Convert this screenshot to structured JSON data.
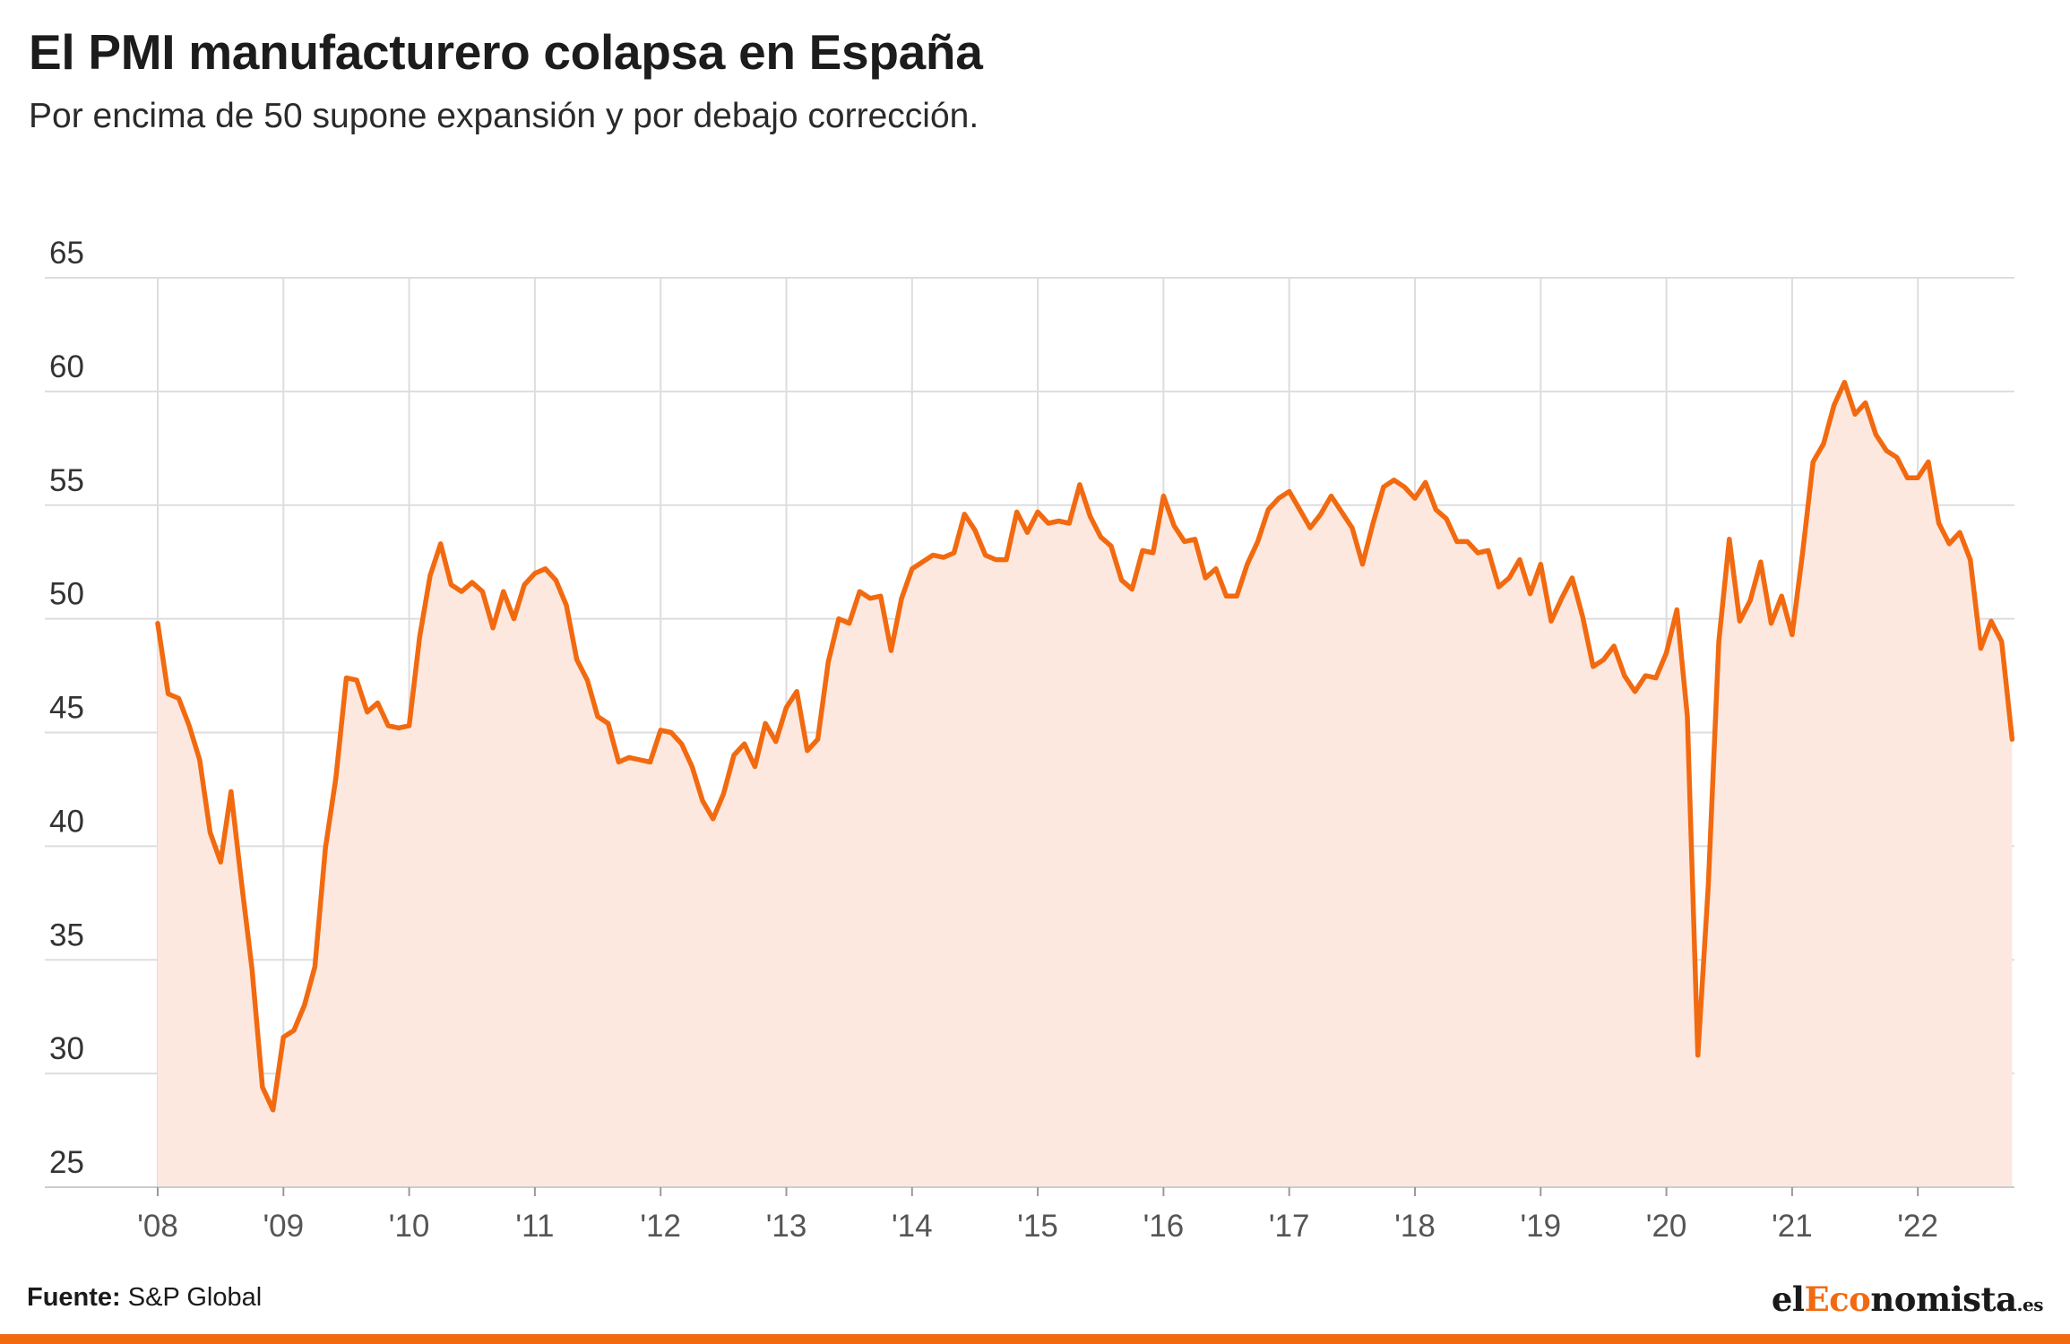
{
  "header": {
    "title": "El PMI manufacturero colapsa en España",
    "subtitle": "Por encima de 50 supone expansión y por debajo corrección."
  },
  "footer": {
    "source_label": "Fuente:",
    "source_value": "S&P Global",
    "logo_prefix": "el",
    "logo_accent": "Eco",
    "logo_rest": "nomista",
    "logo_tld": ".es"
  },
  "colors": {
    "line": "#f26a10",
    "area": "#fde8e0",
    "grid": "#dddddd",
    "accent": "#f26a10"
  },
  "chart_data": {
    "type": "area",
    "ylim": [
      25,
      65
    ],
    "yticks": [
      25,
      30,
      35,
      40,
      45,
      50,
      55,
      60,
      65
    ],
    "xticks": [
      "'08",
      "'09",
      "'10",
      "'11",
      "'12",
      "'13",
      "'14",
      "'15",
      "'16",
      "'17",
      "'18",
      "'19",
      "'20",
      "'21",
      "'22"
    ],
    "x_start": "2008-01",
    "x_end": "2022-10",
    "grid": true,
    "series": [
      {
        "values": [
          49.8,
          46.7,
          46.5,
          45.3,
          43.8,
          40.6,
          39.3,
          42.4,
          38.4,
          34.6,
          29.4,
          28.4,
          31.6,
          31.9,
          33.0,
          34.7,
          39.9,
          43.0,
          47.4,
          47.3,
          45.9,
          46.3,
          45.3,
          45.2,
          45.3,
          49.2,
          51.9,
          53.3,
          51.5,
          51.2,
          51.6,
          51.2,
          49.6,
          51.2,
          50.0,
          51.5,
          52.0,
          52.2,
          51.7,
          50.6,
          48.2,
          47.3,
          45.7,
          45.4,
          43.7,
          43.9,
          43.8,
          43.7,
          45.1,
          45.0,
          44.5,
          43.5,
          42.0,
          41.2,
          42.3,
          44.0,
          44.5,
          43.5,
          45.4,
          44.6,
          46.1,
          46.8,
          44.2,
          44.7,
          48.1,
          50.0,
          49.8,
          51.2,
          50.9,
          51.0,
          48.6,
          50.9,
          52.2,
          52.5,
          52.8,
          52.7,
          52.9,
          54.6,
          53.9,
          52.8,
          52.6,
          52.6,
          54.7,
          53.8,
          54.7,
          54.2,
          54.3,
          54.2,
          55.9,
          54.5,
          53.6,
          53.2,
          51.7,
          51.3,
          53.0,
          52.9,
          55.4,
          54.1,
          53.4,
          53.5,
          51.8,
          52.2,
          51.0,
          51.0,
          52.4,
          53.4,
          54.8,
          55.3,
          55.6,
          54.8,
          54.0,
          54.6,
          55.4,
          54.7,
          54.0,
          52.4,
          54.2,
          55.8,
          56.1,
          55.8,
          55.3,
          56.0,
          54.8,
          54.4,
          53.4,
          53.4,
          52.9,
          53.0,
          51.4,
          51.8,
          52.6,
          51.1,
          52.4,
          49.9,
          50.9,
          51.8,
          50.1,
          47.9,
          48.2,
          48.8,
          47.5,
          46.8,
          47.5,
          47.4,
          48.5,
          50.4,
          45.7,
          30.8,
          38.3,
          49.0,
          53.5,
          49.9,
          50.8,
          52.5,
          49.8,
          51.0,
          49.3,
          52.9,
          56.9,
          57.7,
          59.4,
          60.4,
          59.0,
          59.5,
          58.1,
          57.4,
          57.1,
          56.2,
          56.2,
          56.9,
          54.2,
          53.3,
          53.8,
          52.6,
          48.7,
          49.9,
          49.0,
          44.7
        ]
      }
    ]
  }
}
